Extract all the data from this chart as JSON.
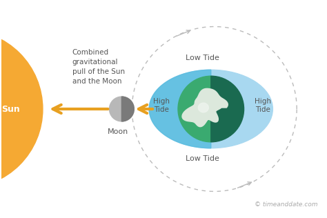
{
  "background_color": "#ffffff",
  "sun_color": "#F5A933",
  "sun_label": "Sun",
  "sun_label_color": "#ffffff",
  "orbit_color": "#bbbbbb",
  "moon_color_light": "#b8b8b8",
  "moon_color_dark": "#7a7a7a",
  "moon_label": "Moon",
  "text_color": "#555555",
  "tide_outer_color": "#a8d8f0",
  "tide_inner_left_color": "#5bbde0",
  "tide_inner_right_color": "#1b6b8a",
  "earth_left_color": "#3aaa70",
  "earth_right_color": "#1a6a50",
  "continent_color": "#e0e8e0",
  "arrow_color": "#E8A020",
  "label_combined": "Combined\ngravitational\npull of the Sun\nand the Moon",
  "label_lowtide": "Low Tide",
  "label_hightide": "High\nTide",
  "watermark": "© timeanddate.com"
}
